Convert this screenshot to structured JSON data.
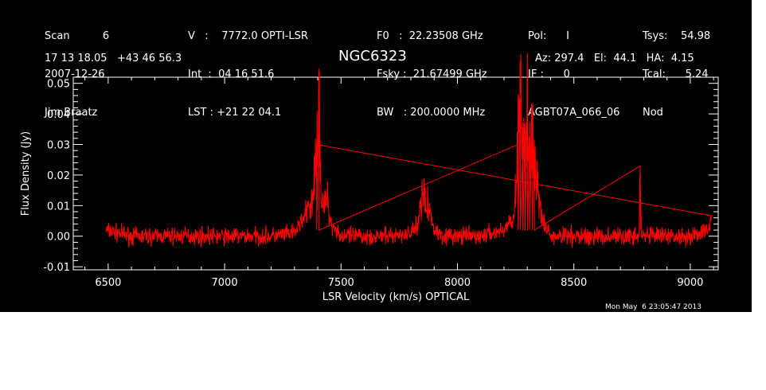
{
  "header": {
    "col1": [
      "Scan          6",
      "2007-12-26",
      "Jim Braatz"
    ],
    "col2": [
      "V   :    7772.0 OPTI-LSR",
      "Int  :  04 16 51.6",
      "LST : +21 22 04.1"
    ],
    "col3": [
      "F0   :  22.23508 GHz",
      "Fsky :  21.67499 GHz",
      "BW   : 200.0000 MHz"
    ],
    "col4": [
      "Pol:      I",
      "IF :      0",
      "AGBT07A_066_06"
    ],
    "col5": [
      "Tsys:    54.98",
      "Tcal:      5.24",
      "Nod"
    ],
    "coords": "17 13 18.05   +43 46 56.3",
    "source": "NGC6323",
    "pointing": "Az: 297.4   El:  44.1   HA:  4.15"
  },
  "timestamp": "Mon May  6 23:05:47 2013",
  "chart_data": {
    "type": "line",
    "title": "NGC6323",
    "xlabel": "LSR Velocity (km/s) OPTICAL",
    "ylabel": "Flux Density (Jy)",
    "xlim": [
      6350,
      9120
    ],
    "ylim": [
      -0.011,
      0.052
    ],
    "x_ticks": [
      6500,
      7000,
      7500,
      8000,
      8500,
      9000
    ],
    "y_ticks": [
      -0.01,
      0.0,
      0.01,
      0.02,
      0.03,
      0.04,
      0.05
    ],
    "y_tick_labels": [
      "-0.01",
      "0.00",
      "0.01",
      "0.02",
      "0.03",
      "0.04",
      "0.05"
    ],
    "line_color": "#ff0000",
    "grid": false,
    "series": [
      {
        "x": [
          6490,
          6600,
          6800,
          7000,
          7200,
          7300,
          7330,
          7360,
          7380,
          7395,
          7405,
          7415,
          7425,
          7440,
          7460,
          7480,
          7500,
          7600,
          7700,
          7800,
          7830,
          7850,
          7860,
          7870,
          7880,
          7890,
          7900,
          7950,
          8000,
          8100,
          8200,
          8240,
          8250,
          8260,
          8270,
          8280,
          8290,
          8300,
          8310,
          8320,
          8330,
          8340,
          8350,
          8370,
          8400,
          8500,
          8600,
          8700,
          8780,
          8785,
          8790,
          8800,
          8900,
          9000,
          9080,
          9090
        ],
        "y": [
          0.002,
          0.0,
          0.0,
          0.0,
          0.0,
          0.001,
          0.005,
          0.008,
          0.012,
          0.03,
          0.046,
          0.015,
          0.009,
          0.012,
          0.004,
          0.002,
          0.0,
          0.0,
          0.0,
          0.001,
          0.004,
          0.015,
          0.012,
          0.014,
          0.008,
          0.005,
          0.002,
          0.0,
          0.0,
          0.0,
          0.002,
          0.006,
          0.015,
          0.03,
          0.045,
          0.028,
          0.035,
          0.042,
          0.03,
          0.043,
          0.025,
          0.02,
          0.01,
          0.004,
          0.0,
          0.0,
          0.0,
          0.0,
          0.0,
          0.023,
          0.0,
          0.0,
          0.0,
          0.0,
          0.002,
          0.006
        ]
      }
    ]
  }
}
